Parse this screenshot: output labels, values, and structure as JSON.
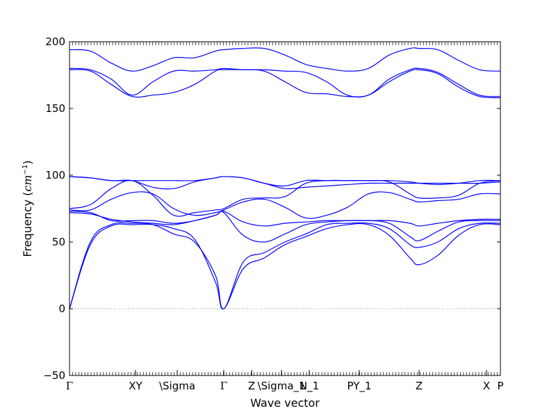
{
  "chart_data": {
    "type": "line",
    "title": "",
    "xlabel": "Wave vector",
    "ylabel": "Frequency",
    "ylabel_unit": "cm",
    "ylabel_unit_exp": "−1",
    "ylim": [
      -50,
      200
    ],
    "yticks": [
      -50,
      0,
      50,
      100,
      150,
      200
    ],
    "ytick_labels": [
      "−50",
      "0",
      "50",
      "100",
      "150",
      "200"
    ],
    "xlim": [
      0,
      6.2
    ],
    "xticks": [
      {
        "pos": 0.0,
        "label": "Γ"
      },
      {
        "pos": 0.95,
        "label": "XY"
      },
      {
        "pos": 1.55,
        "label": "\\Sigma"
      },
      {
        "pos": 2.22,
        "label": "Γ"
      },
      {
        "pos": 2.62,
        "label": "Z"
      },
      {
        "pos": 3.05,
        "label": "\\Sigma_1"
      },
      {
        "pos": 3.45,
        "label": "N_1"
      },
      {
        "pos": 4.17,
        "label": "PY_1"
      },
      {
        "pos": 5.03,
        "label": "Z"
      },
      {
        "pos": 6.0,
        "label": "X"
      },
      {
        "pos": 6.2,
        "label": "P"
      }
    ],
    "zero_line": true,
    "line_color": "#0000ff",
    "zero_line_color": "#777777",
    "x": [
      0.0,
      0.3,
      0.6,
      0.9,
      1.2,
      1.5,
      1.8,
      2.1,
      2.22,
      2.5,
      2.8,
      3.1,
      3.4,
      3.7,
      4.0,
      4.3,
      4.6,
      4.9,
      5.03,
      5.3,
      5.6,
      5.9,
      6.2
    ],
    "series": [
      {
        "values": [
          0,
          48,
          62,
          63,
          63,
          60,
          52,
          20,
          0,
          30,
          38,
          48,
          54,
          60,
          63,
          63,
          55,
          38,
          33,
          40,
          55,
          63,
          63
        ]
      },
      {
        "values": [
          0,
          50,
          63,
          64,
          63,
          56,
          50,
          25,
          0,
          35,
          42,
          50,
          56,
          63,
          64,
          64,
          60,
          48,
          46,
          50,
          60,
          64,
          64
        ]
      },
      {
        "values": [
          72,
          71,
          67,
          65,
          64,
          63,
          66,
          70,
          72,
          55,
          50,
          56,
          63,
          65,
          66,
          66,
          64,
          54,
          51,
          58,
          65,
          66,
          66
        ]
      },
      {
        "values": [
          73,
          72,
          66,
          66,
          66,
          64,
          66,
          70,
          73,
          65,
          62,
          64,
          65,
          66,
          66,
          66,
          66,
          64,
          62,
          64,
          66,
          67,
          67
        ]
      },
      {
        "values": [
          74,
          74,
          82,
          87,
          86,
          75,
          70,
          72,
          74,
          80,
          82,
          76,
          68,
          70,
          76,
          86,
          87,
          82,
          80,
          81,
          82,
          86,
          86
        ]
      },
      {
        "values": [
          75,
          78,
          90,
          96,
          85,
          70,
          72,
          74,
          75,
          82,
          83,
          84,
          94,
          96,
          96,
          96,
          95,
          86,
          83,
          83,
          85,
          94,
          96
        ]
      },
      {
        "values": [
          99,
          98,
          96,
          96,
          96,
          96,
          96,
          98,
          99,
          98,
          94,
          90,
          91,
          92,
          93,
          94,
          94,
          94,
          94,
          94,
          94,
          94,
          95
        ]
      },
      {
        "values": [
          99,
          98,
          96,
          96,
          91,
          90,
          95,
          98,
          99,
          98,
          94,
          92,
          96,
          96,
          96,
          96,
          96,
          95,
          94,
          93,
          94,
          96,
          96
        ]
      },
      {
        "values": [
          179,
          178,
          168,
          159,
          160,
          162,
          168,
          178,
          179,
          179,
          178,
          170,
          162,
          161,
          159,
          160,
          170,
          178,
          179,
          176,
          166,
          159,
          158
        ]
      },
      {
        "values": [
          180,
          179,
          172,
          160,
          170,
          178,
          178,
          179,
          180,
          179,
          179,
          178,
          177,
          170,
          160,
          160,
          172,
          179,
          180,
          177,
          168,
          160,
          159
        ]
      },
      {
        "values": [
          194,
          193,
          184,
          178,
          182,
          188,
          188,
          193,
          194,
          195,
          195,
          190,
          183,
          180,
          178,
          180,
          190,
          195,
          195,
          194,
          186,
          179,
          178
        ]
      }
    ]
  }
}
